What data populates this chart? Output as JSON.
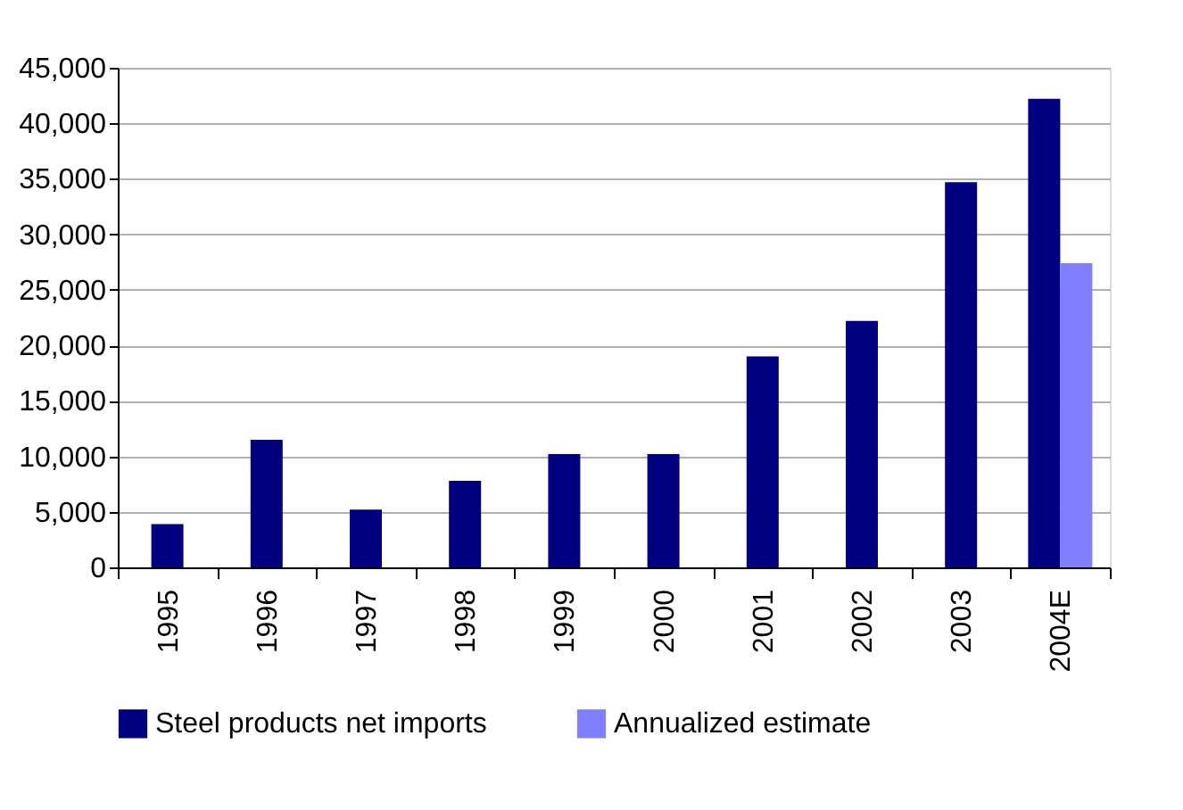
{
  "chart_data": {
    "type": "bar",
    "categories": [
      "1995",
      "1996",
      "1997",
      "1998",
      "1999",
      "2000",
      "2001",
      "2002",
      "2003",
      "2004E"
    ],
    "series": [
      {
        "name": "Steel products net imports",
        "color": "#000080",
        "values": [
          3900,
          11500,
          5200,
          7800,
          10200,
          10200,
          19000,
          22200,
          34700,
          42200
        ]
      },
      {
        "name": "Annualized estimate",
        "color": "#7f7fff",
        "values": [
          null,
          null,
          null,
          null,
          null,
          null,
          null,
          null,
          null,
          27400
        ]
      }
    ],
    "ylim": [
      0,
      45000
    ],
    "yticks": [
      0,
      {
        "value": 5000,
        "label": "5,000"
      },
      {
        "value": 10000,
        "label": "10,000"
      },
      {
        "value": 15000,
        "label": "15,000"
      },
      {
        "value": 20000,
        "label": "20,000"
      },
      {
        "value": 25000,
        "label": "25,000"
      },
      {
        "value": 30000,
        "label": "30,000"
      },
      {
        "value": 35000,
        "label": "35,000"
      },
      {
        "value": 40000,
        "label": "40,000"
      },
      {
        "value": 45000,
        "label": "45,000"
      }
    ],
    "grid": "y",
    "legend": "bottom"
  }
}
